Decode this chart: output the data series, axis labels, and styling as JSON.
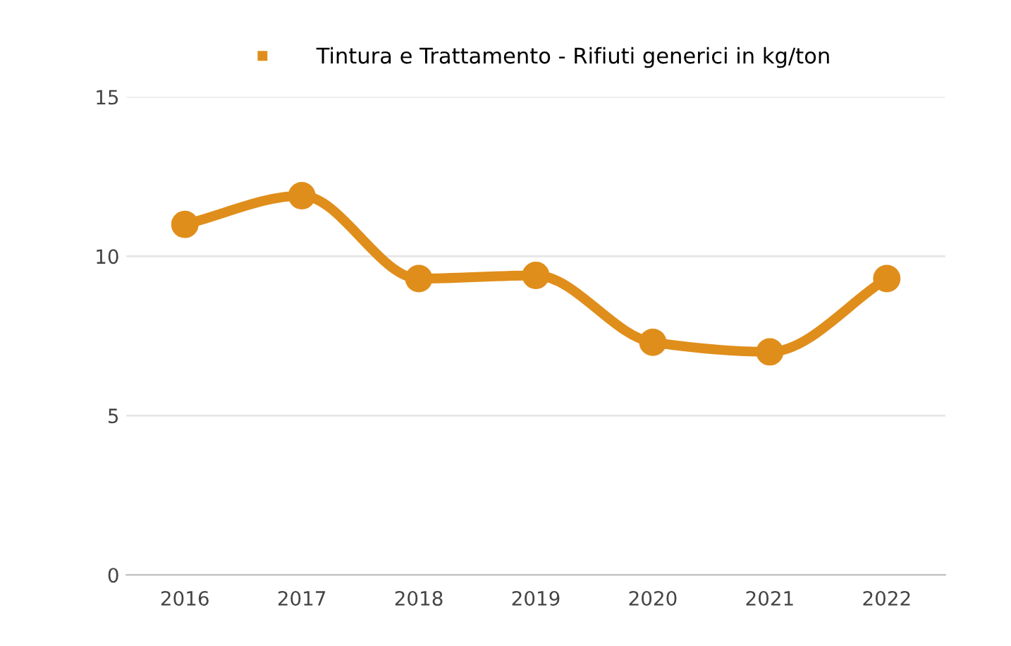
{
  "chart_data": {
    "type": "line",
    "categories": [
      "2016",
      "2017",
      "2018",
      "2019",
      "2020",
      "2021",
      "2022"
    ],
    "series": [
      {
        "name": "Tintura e Trattamento - Rifiuti generici in kg/ton",
        "color": "#e08e1b",
        "values": [
          11.0,
          11.9,
          9.3,
          9.4,
          7.3,
          7.0,
          9.3
        ]
      }
    ],
    "ylim": [
      0,
      15
    ],
    "yticks": [
      0,
      5,
      10,
      15
    ],
    "grid": "y",
    "legend": "top",
    "marker": "circle",
    "line_style": "solid"
  }
}
